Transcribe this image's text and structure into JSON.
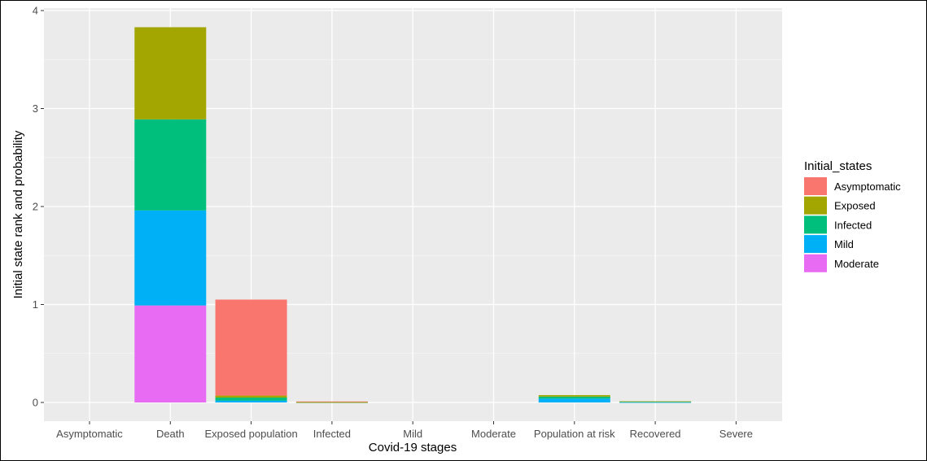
{
  "chart_data": {
    "type": "bar",
    "stacked": true,
    "xlabel": "Covid-19 stages",
    "ylabel": "Initial state rank and probability",
    "ylim": [
      0,
      4
    ],
    "yticks": [
      0,
      1,
      2,
      3,
      4
    ],
    "grid": true,
    "legend_title": "Initial_states",
    "legend_position": "right",
    "categories": [
      "Asymptomatic",
      "Death",
      "Exposed population",
      "Infected",
      "Mild",
      "Moderate",
      "Population at risk",
      "Recovered",
      "Severe"
    ],
    "series": [
      {
        "name": "Moderate",
        "color": "#E76BF3",
        "values": [
          0,
          0.99,
          0.0,
          0.0,
          0,
          0,
          0.0,
          0.0,
          0
        ]
      },
      {
        "name": "Mild",
        "color": "#00B0F6",
        "values": [
          0,
          0.97,
          0.02,
          0.0,
          0,
          0,
          0.04,
          0.003,
          0
        ]
      },
      {
        "name": "Infected",
        "color": "#00BF7D",
        "values": [
          0,
          0.93,
          0.03,
          0.002,
          0,
          0,
          0.02,
          0.007,
          0
        ]
      },
      {
        "name": "Exposed",
        "color": "#A3A500",
        "values": [
          0,
          0.94,
          0.02,
          0.002,
          0,
          0,
          0.015,
          0.002,
          0
        ]
      },
      {
        "name": "Asymptomatic",
        "color": "#F8766D",
        "values": [
          0,
          0.0,
          0.98,
          0.006,
          0,
          0,
          0.0,
          0.0,
          0
        ]
      }
    ],
    "legend_order": [
      "Asymptomatic",
      "Exposed",
      "Infected",
      "Mild",
      "Moderate"
    ]
  }
}
